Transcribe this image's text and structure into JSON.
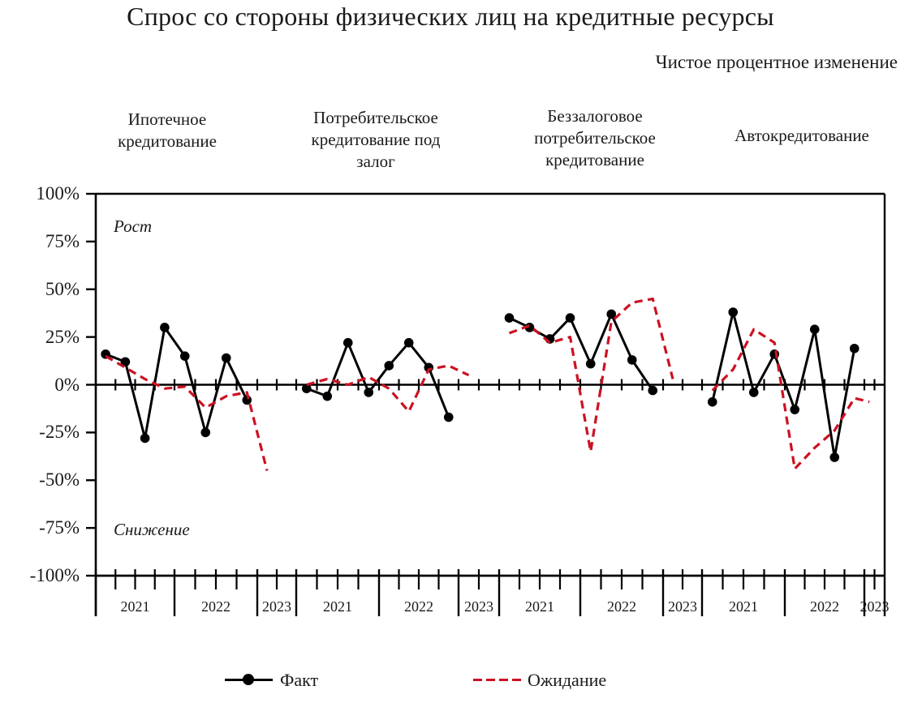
{
  "chart_data": {
    "type": "line",
    "title": "Спрос со стороны физических лиц на кредитные ресурсы",
    "subtitle": "Чистое процентное изменение",
    "ylim": [
      -100,
      100
    ],
    "y_ticks": [
      "100%",
      "75%",
      "50%",
      "25%",
      "0%",
      "-25%",
      "-50%",
      "-75%",
      "-100%"
    ],
    "annotations": {
      "upper": "Рост",
      "lower": "Снижение"
    },
    "colors": {
      "fact": "#000000",
      "expectation": "#CC1122"
    },
    "legend": [
      {
        "name": "Факт",
        "series": "fact",
        "style": "solid line with dot markers"
      },
      {
        "name": "Ожидание",
        "series": "expectation",
        "style": "dashed line"
      }
    ],
    "quarters": [
      "2021Q1",
      "2021Q2",
      "2021Q3",
      "2021Q4",
      "2022Q1",
      "2022Q2",
      "2022Q3",
      "2022Q4",
      "2023Q1"
    ],
    "panels": [
      {
        "label": "Ипотечное кредитование",
        "label_lines": [
          "Ипотечное",
          "кредитование"
        ],
        "years": [
          "2021",
          "2022",
          "2023"
        ],
        "fact": [
          16,
          12,
          -28,
          30,
          15,
          -25,
          14,
          -8
        ],
        "expectation": [
          15,
          9,
          3,
          -2,
          -1,
          -12,
          -6,
          -4,
          -45
        ]
      },
      {
        "label": "Потребительское кредитование под залог",
        "label_lines": [
          "Потребительское",
          "кредитование под",
          "залог"
        ],
        "years": [
          "2021",
          "2022",
          "2023"
        ],
        "fact": [
          -2,
          -6,
          22,
          -4,
          10,
          22,
          9,
          -17
        ],
        "expectation": [
          0,
          3,
          0,
          4,
          -2,
          -14,
          8,
          10,
          5
        ]
      },
      {
        "label": "Беззалоговое потребительское кредитование",
        "label_lines": [
          "Беззалоговое",
          "потребительское",
          "кредитование"
        ],
        "years": [
          "2021",
          "2022",
          "2023"
        ],
        "fact": [
          35,
          30,
          24,
          35,
          11,
          37,
          13,
          -3
        ],
        "expectation": [
          27,
          31,
          22,
          25,
          -35,
          33,
          43,
          45,
          3
        ]
      },
      {
        "label": "Автокредитование",
        "label_lines": [
          "Автокредитование"
        ],
        "years": [
          "2021",
          "2022",
          "2023"
        ],
        "fact": [
          -9,
          38,
          -4,
          16,
          -13,
          29,
          -38,
          19
        ],
        "expectation": [
          -3,
          8,
          29,
          22,
          -44,
          -33,
          -24,
          -7,
          -9
        ]
      }
    ]
  }
}
